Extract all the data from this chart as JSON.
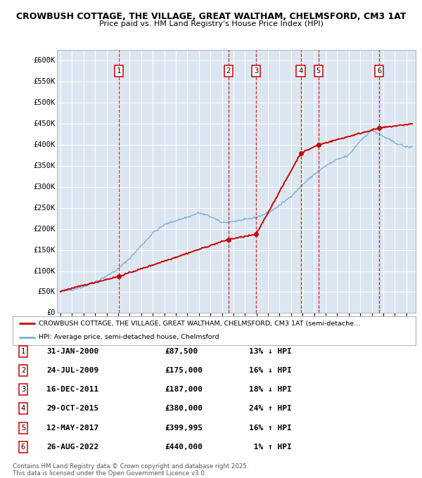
{
  "title1": "CROWBUSH COTTAGE, THE VILLAGE, GREAT WALTHAM, CHELMSFORD, CM3 1AT",
  "title2": "Price paid vs. HM Land Registry's House Price Index (HPI)",
  "bg_color": "#dce6f1",
  "grid_color": "#ffffff",
  "y_ticks": [
    0,
    50000,
    100000,
    150000,
    200000,
    250000,
    300000,
    350000,
    400000,
    450000,
    500000,
    550000,
    600000
  ],
  "y_tick_labels": [
    "£0",
    "£50K",
    "£100K",
    "£150K",
    "£200K",
    "£250K",
    "£300K",
    "£350K",
    "£400K",
    "£450K",
    "£500K",
    "£550K",
    "£600K"
  ],
  "sales": [
    {
      "num": 1,
      "date": "31-JAN-2000",
      "year": 2000.08,
      "price": 87500,
      "pct": "13%",
      "dir": "↓"
    },
    {
      "num": 2,
      "date": "24-JUL-2009",
      "year": 2009.56,
      "price": 175000,
      "pct": "16%",
      "dir": "↓"
    },
    {
      "num": 3,
      "date": "16-DEC-2011",
      "year": 2011.96,
      "price": 187000,
      "pct": "18%",
      "dir": "↓"
    },
    {
      "num": 4,
      "date": "29-OCT-2015",
      "year": 2015.83,
      "price": 380000,
      "pct": "24%",
      "dir": "↑"
    },
    {
      "num": 5,
      "date": "12-MAY-2017",
      "year": 2017.36,
      "price": 399995,
      "pct": "16%",
      "dir": "↑"
    },
    {
      "num": 6,
      "date": "26-AUG-2022",
      "year": 2022.65,
      "price": 440000,
      "pct": "1%",
      "dir": "↑"
    }
  ],
  "legend_label1": "CROWBUSH COTTAGE, THE VILLAGE, GREAT WALTHAM, CHELMSFORD, CM3 1AT (semi-detache…",
  "legend_label2": "HPI: Average price, semi-detached house, Chelmsford",
  "footer": "Contains HM Land Registry data © Crown copyright and database right 2025.\nThis data is licensed under the Open Government Licence v3.0.",
  "sale_color": "#cc0000",
  "hpi_color": "#7bafd4",
  "dashed_color": "#cc0000",
  "ylim": [
    0,
    625000
  ],
  "xlim_start": 1994.7,
  "xlim_end": 2025.8
}
